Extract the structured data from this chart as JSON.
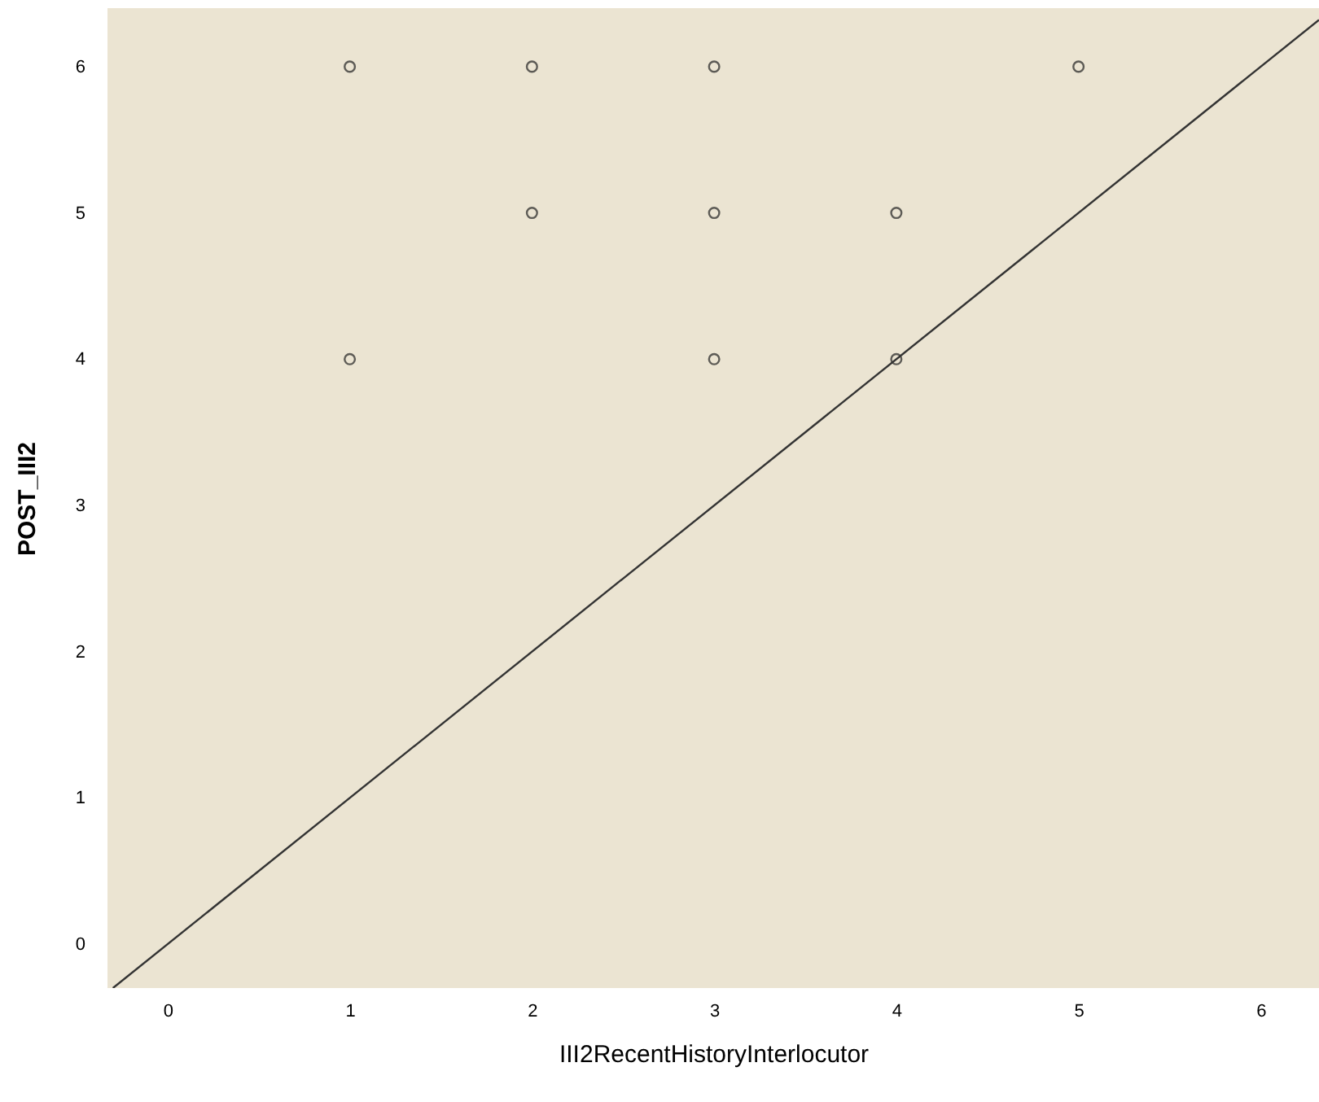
{
  "chart_data": {
    "type": "scatter",
    "xlabel": "III2RecentHistoryInterlocutor",
    "ylabel": "POST_III2",
    "xlim": [
      -0.33,
      6.32
    ],
    "ylim": [
      -0.3,
      6.4
    ],
    "xticks": [
      0,
      1,
      2,
      3,
      4,
      5,
      6
    ],
    "yticks": [
      0,
      1,
      2,
      3,
      4,
      5,
      6
    ],
    "grid": false,
    "marker": "circle",
    "series": [
      {
        "color": "#222222",
        "x": [
          1,
          2,
          3,
          5,
          2,
          3,
          4,
          1,
          3,
          4
        ],
        "values": [
          6,
          6,
          6,
          6,
          5,
          5,
          5,
          4,
          4,
          4
        ]
      },
      {
        "type": "line",
        "marker": "none",
        "color": "#333333",
        "line_style": "solid",
        "x": [
          -0.3,
          6.32
        ],
        "values": [
          -0.3,
          6.32
        ]
      }
    ]
  }
}
